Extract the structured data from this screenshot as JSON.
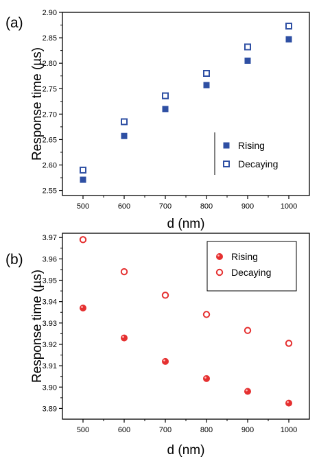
{
  "chart_data": [
    {
      "type": "scatter",
      "panel_label": "(a)",
      "xlabel": "d (nm)",
      "ylabel": "Response time (µs)",
      "xlim": [
        450,
        1050
      ],
      "ylim": [
        2.54,
        2.9
      ],
      "x_ticks": [
        "500",
        "600",
        "700",
        "800",
        "900",
        "1000"
      ],
      "y_ticks": [
        "2.55",
        "2.60",
        "2.65",
        "2.70",
        "2.75",
        "2.80",
        "2.85",
        "2.90"
      ],
      "legend_placement": "bottom-right",
      "series": [
        {
          "name": "Rising",
          "marker": "filled-square",
          "color": "#2e4fa3",
          "x": [
            500,
            600,
            700,
            800,
            900,
            1000
          ],
          "y": [
            2.571,
            2.657,
            2.71,
            2.757,
            2.805,
            2.847
          ]
        },
        {
          "name": "Decaying",
          "marker": "open-square",
          "color": "#2e4fa3",
          "x": [
            500,
            600,
            700,
            800,
            900,
            1000
          ],
          "y": [
            2.59,
            2.685,
            2.736,
            2.78,
            2.832,
            2.873
          ]
        }
      ]
    },
    {
      "type": "scatter",
      "panel_label": "(b)",
      "xlabel": "d (nm)",
      "ylabel": "Response time (µs)",
      "xlim": [
        450,
        1050
      ],
      "ylim": [
        3.885,
        3.972
      ],
      "x_ticks": [
        "500",
        "600",
        "700",
        "800",
        "900",
        "1000"
      ],
      "y_ticks": [
        "3.89",
        "3.90",
        "3.91",
        "3.92",
        "3.93",
        "3.94",
        "3.95",
        "3.96",
        "3.97"
      ],
      "legend_placement": "top-right",
      "series": [
        {
          "name": "Rising",
          "marker": "filled-circle",
          "color": "#e53030",
          "x": [
            500,
            600,
            700,
            800,
            900,
            1000
          ],
          "y": [
            3.937,
            3.923,
            3.912,
            3.904,
            3.898,
            3.8925
          ]
        },
        {
          "name": "Decaying",
          "marker": "open-circle",
          "color": "#e53030",
          "x": [
            500,
            600,
            700,
            800,
            900,
            1000
          ],
          "y": [
            3.969,
            3.954,
            3.943,
            3.934,
            3.9265,
            3.9205
          ]
        }
      ]
    }
  ]
}
